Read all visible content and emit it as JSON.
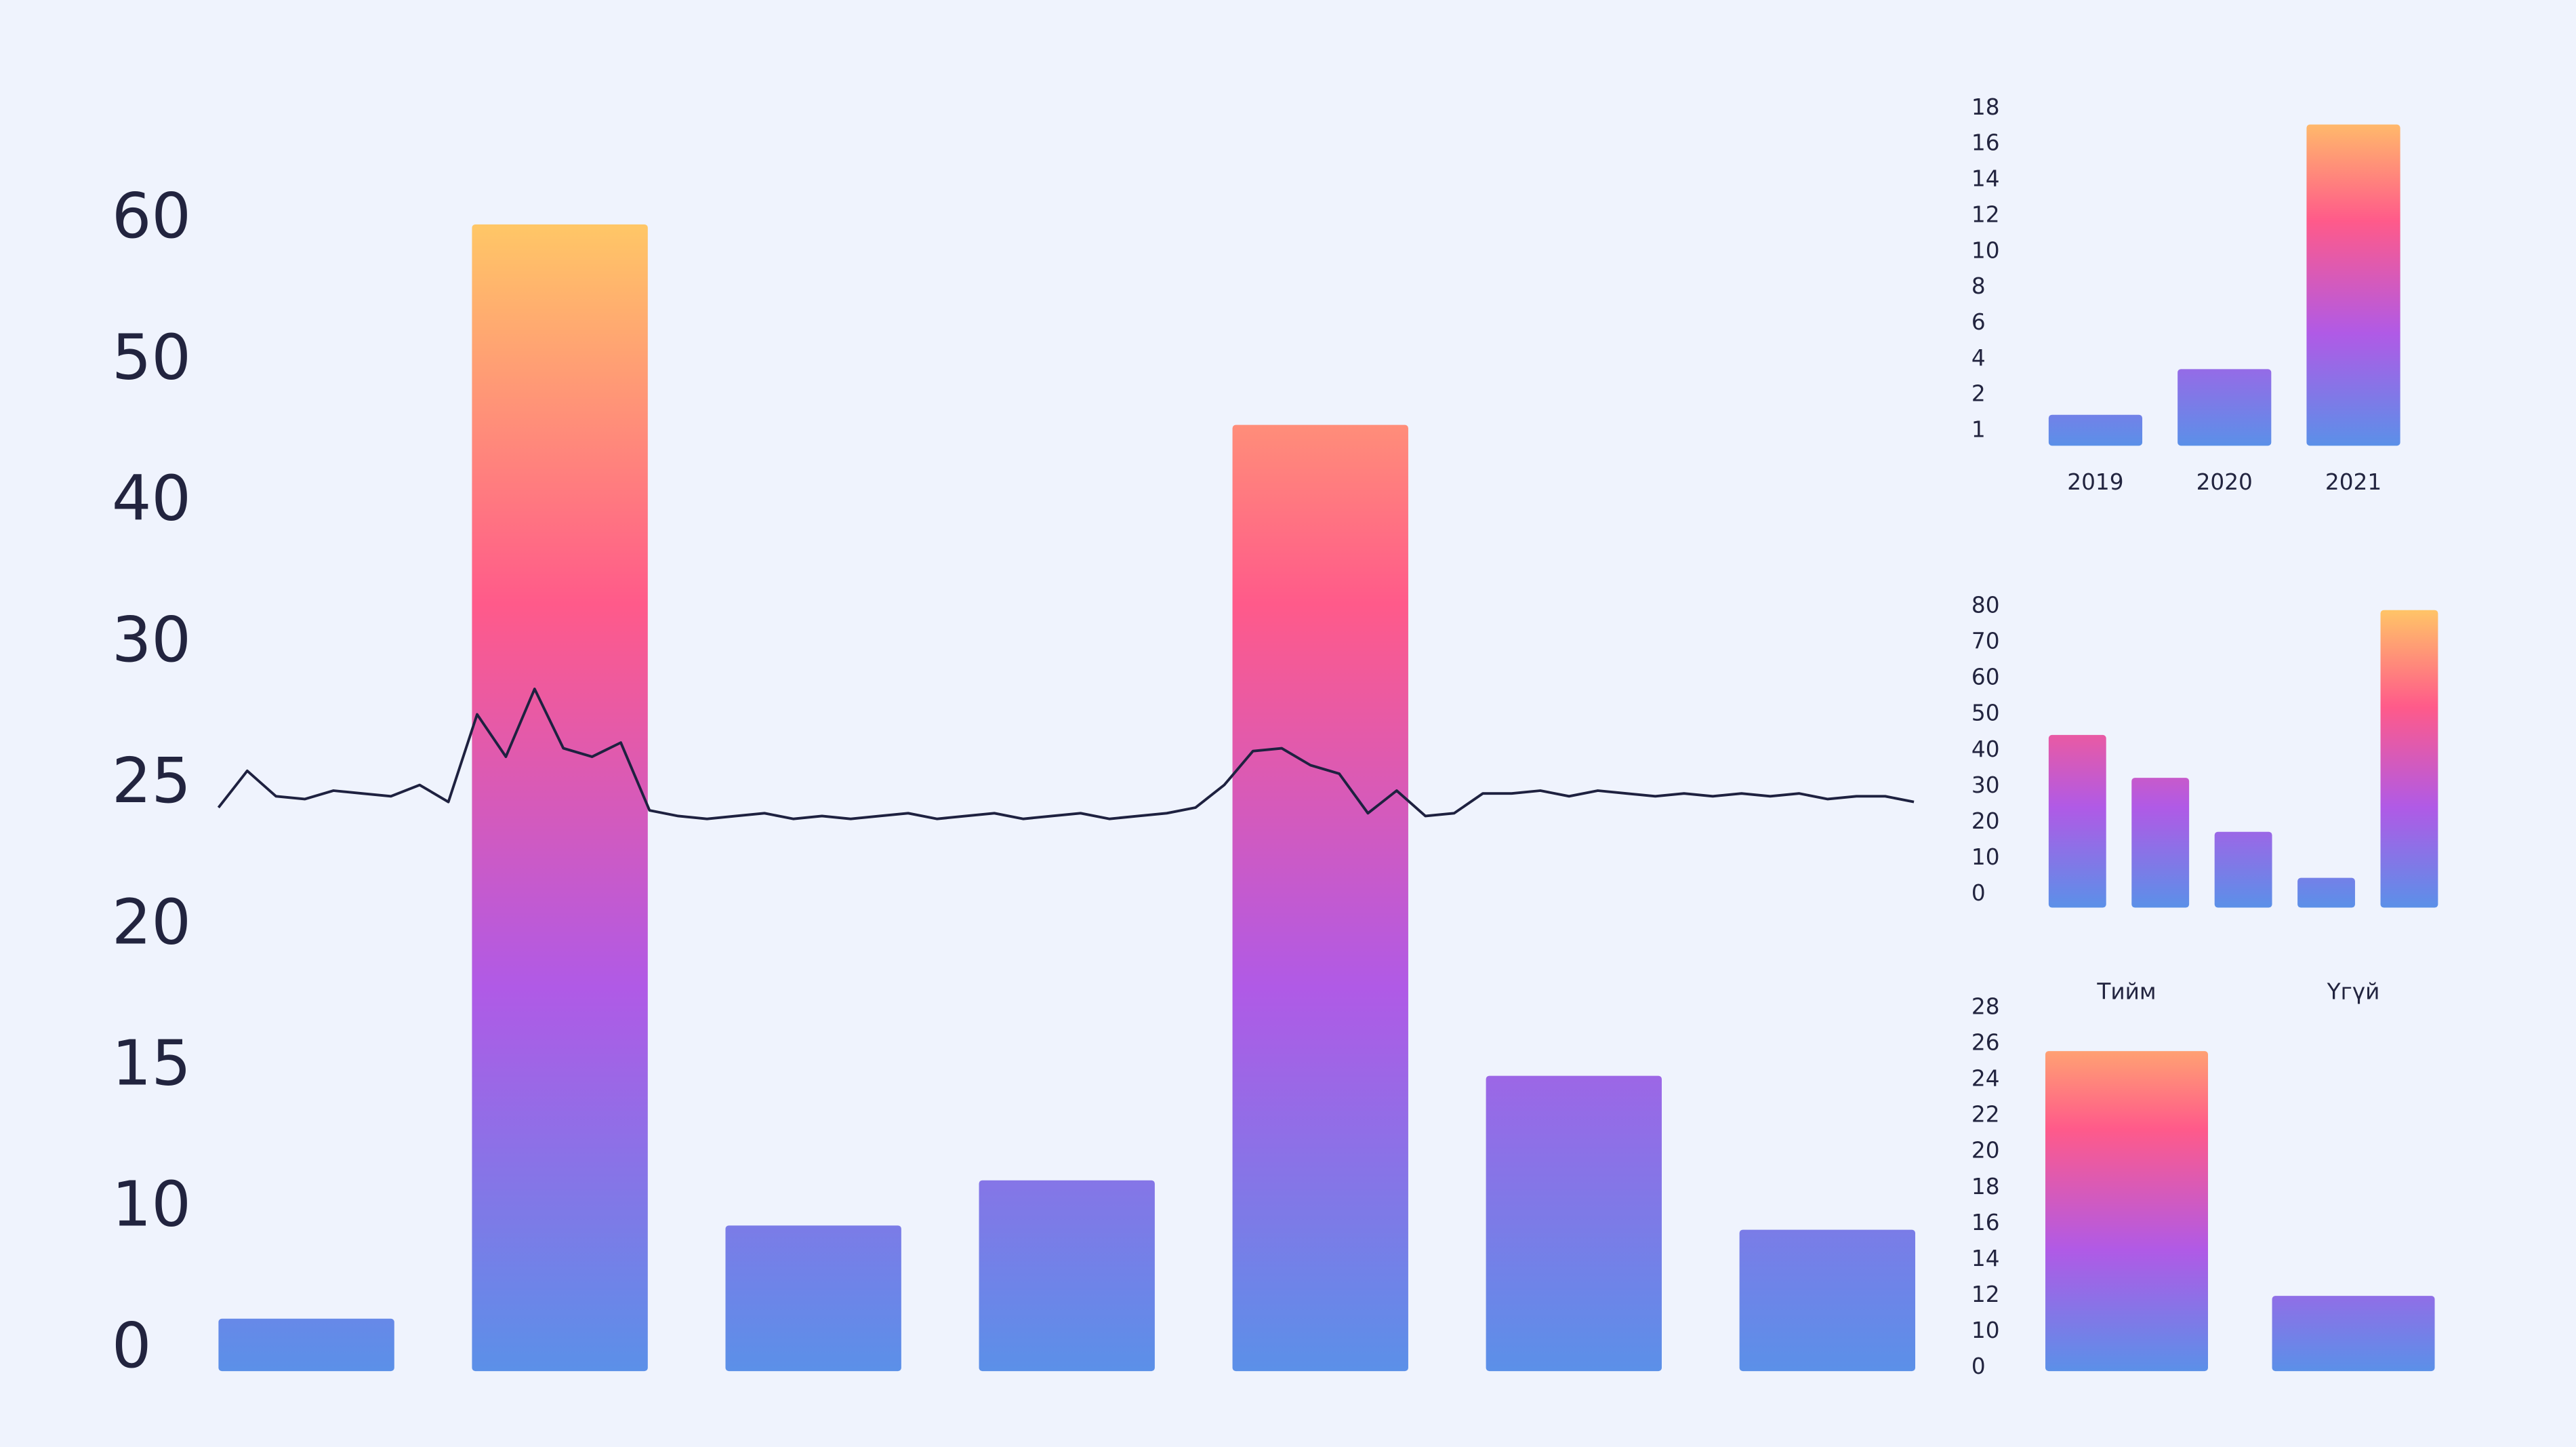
{
  "chart_data": [
    {
      "type": "bar",
      "yticks": [
        0,
        10,
        15,
        20,
        25,
        30,
        40,
        50,
        60
      ],
      "values": [
        2.2,
        59.7,
        8.8,
        11,
        45.5,
        14.7,
        8.5
      ],
      "gradient": [
        "#5b90e8",
        "#b05ae6",
        "#ff5a8a",
        "#ffc866"
      ],
      "overlay": {
        "type": "line",
        "color": "#1e2140",
        "values": [
          24.2,
          25.5,
          24.6,
          24.5,
          24.8,
          24.7,
          24.6,
          25.0,
          24.4,
          27.5,
          26.0,
          28.4,
          26.3,
          26.0,
          26.5,
          24.1,
          23.9,
          23.8,
          23.9,
          24.0,
          23.8,
          23.9,
          23.8,
          23.9,
          24.0,
          23.8,
          23.9,
          24.0,
          23.8,
          23.9,
          24.0,
          23.8,
          23.9,
          24.0,
          24.2,
          25.0,
          26.2,
          26.3,
          25.7,
          25.4,
          24.0,
          24.8,
          23.9,
          24.0,
          24.7,
          24.7,
          24.8,
          24.6,
          24.8,
          24.7,
          24.6,
          24.7,
          24.6,
          24.7,
          24.6,
          24.7,
          24.5,
          24.6,
          24.6,
          24.4
        ]
      }
    },
    {
      "type": "bar",
      "categories": [
        "2019",
        "2020",
        "2021"
      ],
      "yticks": [
        1,
        2,
        4,
        6,
        8,
        10,
        12,
        14,
        16,
        18
      ],
      "values": [
        1.45,
        3.45,
        17.1
      ],
      "gradient": [
        "#5b90e8",
        "#b05ae6",
        "#ff5a8a",
        "#ffc866"
      ]
    },
    {
      "type": "bar",
      "yticks": [
        0,
        10,
        20,
        30,
        40,
        50,
        60,
        70,
        80
      ],
      "values": [
        44.3,
        32.4,
        17.4,
        4.6,
        79
      ],
      "gradient": [
        "#5b90e8",
        "#b05ae6",
        "#ff5a8a",
        "#ffc866"
      ]
    },
    {
      "type": "bar",
      "categories": [
        "Тийм",
        "Үгүй"
      ],
      "yticks": [
        0,
        10,
        12,
        14,
        16,
        18,
        20,
        22,
        24,
        26,
        28
      ],
      "values": [
        25.6,
        12
      ],
      "gradient": [
        "#5b90e8",
        "#b05ae6",
        "#ff5a8a",
        "#ffc866"
      ]
    }
  ]
}
